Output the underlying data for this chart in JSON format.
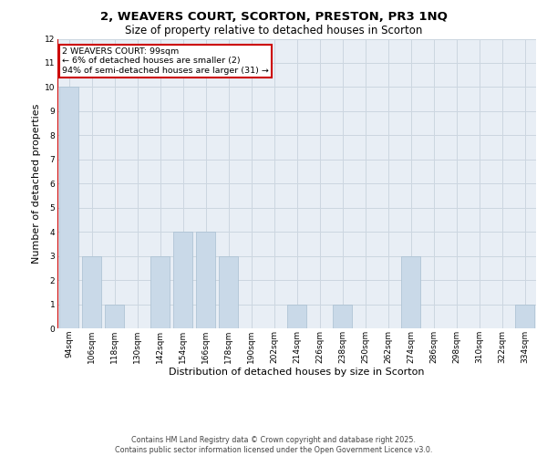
{
  "title_line1": "2, WEAVERS COURT, SCORTON, PRESTON, PR3 1NQ",
  "title_line2": "Size of property relative to detached houses in Scorton",
  "xlabel": "Distribution of detached houses by size in Scorton",
  "ylabel": "Number of detached properties",
  "categories": [
    "94sqm",
    "106sqm",
    "118sqm",
    "130sqm",
    "142sqm",
    "154sqm",
    "166sqm",
    "178sqm",
    "190sqm",
    "202sqm",
    "214sqm",
    "226sqm",
    "238sqm",
    "250sqm",
    "262sqm",
    "274sqm",
    "286sqm",
    "298sqm",
    "310sqm",
    "322sqm",
    "334sqm"
  ],
  "values": [
    10,
    3,
    1,
    0,
    3,
    4,
    4,
    3,
    0,
    0,
    1,
    0,
    1,
    0,
    0,
    3,
    0,
    0,
    0,
    0,
    1
  ],
  "bar_color": "#c9d9e8",
  "bar_edge_color": "#a8bfd0",
  "highlight_line_color": "#cc0000",
  "annotation_text": "2 WEAVERS COURT: 99sqm\n← 6% of detached houses are smaller (2)\n94% of semi-detached houses are larger (31) →",
  "annotation_box_color": "#ffffff",
  "annotation_box_edge_color": "#cc0000",
  "ylim": [
    0,
    12
  ],
  "yticks": [
    0,
    1,
    2,
    3,
    4,
    5,
    6,
    7,
    8,
    9,
    10,
    11,
    12
  ],
  "grid_color": "#ccd6e0",
  "background_color": "#e8eef5",
  "footer_text": "Contains HM Land Registry data © Crown copyright and database right 2025.\nContains public sector information licensed under the Open Government Licence v3.0.",
  "title_fontsize": 9.5,
  "subtitle_fontsize": 8.5,
  "tick_fontsize": 6.5,
  "ylabel_fontsize": 8,
  "xlabel_fontsize": 8,
  "annotation_fontsize": 6.8,
  "footer_fontsize": 5.8
}
